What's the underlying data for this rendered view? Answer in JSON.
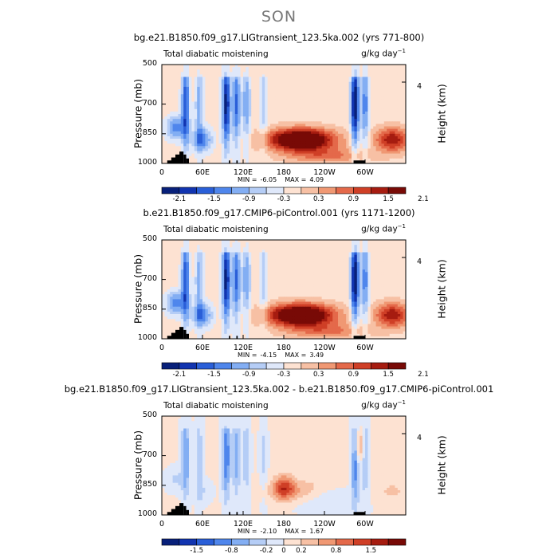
{
  "page": {
    "title": "SON"
  },
  "colors": {
    "palette": [
      "#08207a",
      "#1134b0",
      "#2a5fd8",
      "#4f86ec",
      "#83aef3",
      "#b5cdf6",
      "#dfe8fa",
      "#fde2d2",
      "#f7c0a4",
      "#f09873",
      "#e4694a",
      "#cf3f26",
      "#a61c10",
      "#780a06"
    ],
    "terrain": "#000000"
  },
  "labels": {
    "variable": "Total diabatic moistening",
    "units": "g/kg day",
    "units_exp": "−1",
    "ylabel_left": "Pressure (mb)",
    "ylabel_right": "Height (km)",
    "yticks": [
      "500",
      "700",
      "850",
      "1000"
    ],
    "right_ticks": [
      "4"
    ],
    "xticks": [
      "0",
      "60E",
      "120E",
      "180",
      "120W",
      "60W"
    ]
  },
  "panels": [
    {
      "title": "bg.e21.B1850.f09_g17.LIGtransient_123.5ka.002 (yrs 771-800)",
      "min_label": "MIN =",
      "min_value": "-6.05",
      "max_label": "MAX =",
      "max_value": "4.09",
      "colorbar_labels": [
        "-2.1",
        "-1.5",
        "-0.9",
        "-0.3",
        "0.3",
        "0.9",
        "1.5",
        "2.1"
      ]
    },
    {
      "title": "b.e21.B1850.f09_g17.CMIP6-piControl.001 (yrs 1171-1200)",
      "min_label": "MIN =",
      "min_value": "-4.15",
      "max_label": "MAX =",
      "max_value": "3.49",
      "colorbar_labels": [
        "-2.1",
        "-1.5",
        "-0.9",
        "-0.3",
        "0.3",
        "0.9",
        "1.5",
        "2.1"
      ]
    },
    {
      "title": "bg.e21.B1850.f09_g17.LIGtransient_123.5ka.002 - b.e21.B1850.f09_g17.CMIP6-piControl.001",
      "min_label": "MIN =",
      "min_value": "-2.10",
      "max_label": "MAX =",
      "max_value": "1.67",
      "colorbar_labels": [
        "-1.5",
        "-0.8",
        "-0.2",
        "0",
        "0.2",
        "0.8",
        "1.5"
      ]
    }
  ],
  "chart_data": [
    {
      "type": "heatmap",
      "title": "bg.e21.B1850.f09_g17.LIGtransient_123.5ka.002 (yrs 771-800)",
      "xlabel": "",
      "ylabel": "Pressure (mb)",
      "xlim": [
        0,
        360
      ],
      "ylim": [
        1000,
        500
      ],
      "xticks": [
        0,
        60,
        120,
        180,
        240,
        300
      ],
      "yticks": [
        500,
        700,
        850,
        1000
      ],
      "colorbar_levels": [
        -2.1,
        -1.5,
        -0.9,
        -0.3,
        0.3,
        0.9,
        1.5,
        2.1
      ],
      "min": -6.05,
      "max": 4.09
    },
    {
      "type": "heatmap",
      "title": "b.e21.B1850.f09_g17.CMIP6-piControl.001 (yrs 1171-1200)",
      "xlabel": "",
      "ylabel": "Pressure (mb)",
      "xlim": [
        0,
        360
      ],
      "ylim": [
        1000,
        500
      ],
      "xticks": [
        0,
        60,
        120,
        180,
        240,
        300
      ],
      "yticks": [
        500,
        700,
        850,
        1000
      ],
      "colorbar_levels": [
        -2.1,
        -1.5,
        -0.9,
        -0.3,
        0.3,
        0.9,
        1.5,
        2.1
      ],
      "min": -4.15,
      "max": 3.49
    },
    {
      "type": "heatmap",
      "title": "bg.e21.B1850.f09_g17.LIGtransient_123.5ka.002 - b.e21.B1850.f09_g17.CMIP6-piControl.001",
      "xlabel": "",
      "ylabel": "Pressure (mb)",
      "xlim": [
        0,
        360
      ],
      "ylim": [
        1000,
        500
      ],
      "xticks": [
        0,
        60,
        120,
        180,
        240,
        300
      ],
      "yticks": [
        500,
        700,
        850,
        1000
      ],
      "colorbar_levels": [
        -1.5,
        -0.8,
        -0.2,
        0,
        0.2,
        0.8,
        1.5
      ],
      "min": -2.1,
      "max": 1.67
    }
  ]
}
